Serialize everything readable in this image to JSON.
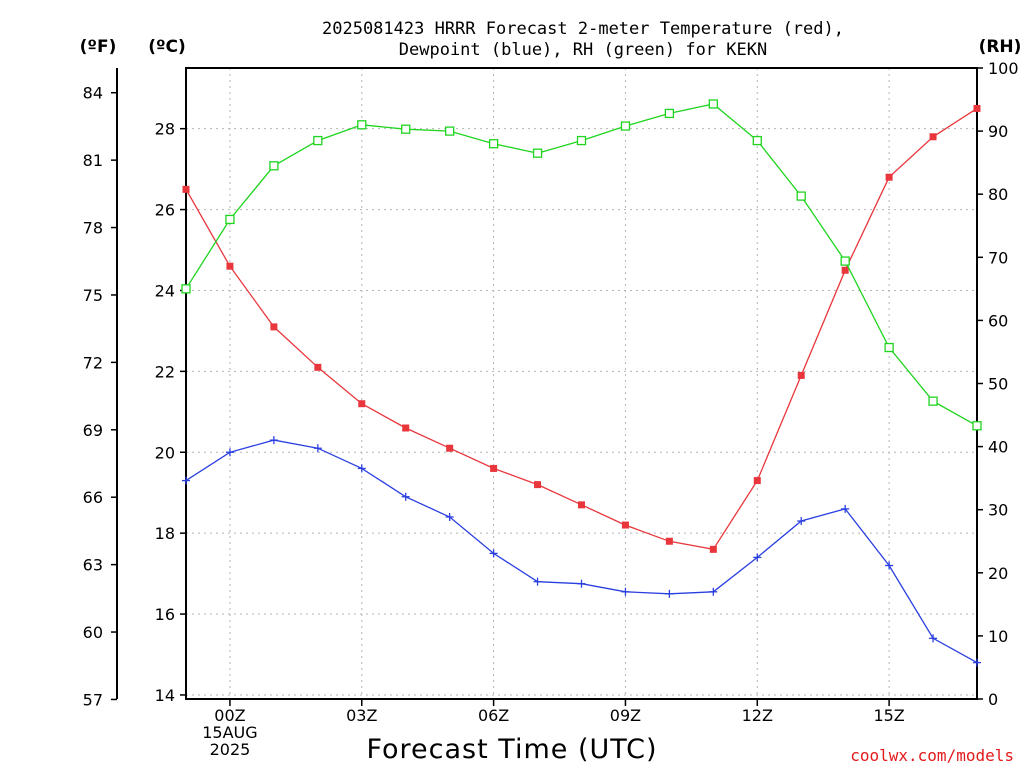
{
  "chart_data": {
    "type": "line",
    "title_line1": "2025081423 HRRR Forecast 2-meter Temperature (red),",
    "title_line2": "Dewpoint (blue), RH (green) for KEKN",
    "xlabel": "Forecast Time (UTC)",
    "credit": "coolwx.com/models",
    "unit_f": "(ºF)",
    "unit_c": "(ºC)",
    "unit_rh": "(RH)",
    "x_ticks": [
      {
        "hour": 0,
        "lines": [
          "00Z",
          "15AUG",
          "2025"
        ]
      },
      {
        "hour": 3,
        "lines": [
          "03Z"
        ]
      },
      {
        "hour": 6,
        "lines": [
          "06Z"
        ]
      },
      {
        "hour": 9,
        "lines": [
          "09Z"
        ]
      },
      {
        "hour": 12,
        "lines": [
          "12Z"
        ]
      },
      {
        "hour": 15,
        "lines": [
          "15Z"
        ]
      }
    ],
    "xlim": [
      -1,
      17
    ],
    "ylim_c": [
      13.9,
      29.5
    ],
    "ylim_rh": [
      0,
      100
    ],
    "c_ticks": [
      14,
      16,
      18,
      20,
      22,
      24,
      26,
      28
    ],
    "f_ticks": [
      57,
      60,
      63,
      66,
      69,
      72,
      75,
      78,
      81,
      84
    ],
    "rh_ticks": [
      0,
      10,
      20,
      30,
      40,
      50,
      60,
      70,
      80,
      90,
      100
    ],
    "series": [
      {
        "name": "Temperature",
        "color": "#e8363c",
        "axis": "c",
        "marker": "filled-square",
        "x": [
          -1,
          0,
          1,
          2,
          3,
          4,
          5,
          6,
          7,
          8,
          9,
          10,
          11,
          12,
          13,
          14,
          15,
          16,
          17
        ],
        "values": [
          26.5,
          24.6,
          23.1,
          22.1,
          21.2,
          20.6,
          20.1,
          19.6,
          19.2,
          18.7,
          18.2,
          17.8,
          17.6,
          19.3,
          21.9,
          24.5,
          26.8,
          27.8,
          28.5
        ]
      },
      {
        "name": "Dewpoint",
        "color": "#2a3fe0",
        "axis": "c",
        "marker": "plus",
        "x": [
          -1,
          0,
          1,
          2,
          3,
          4,
          5,
          6,
          7,
          8,
          9,
          10,
          11,
          12,
          13,
          14,
          15,
          16,
          17
        ],
        "values": [
          19.3,
          20.0,
          20.3,
          20.1,
          19.6,
          18.9,
          18.4,
          17.5,
          16.8,
          16.75,
          16.55,
          16.5,
          16.55,
          17.4,
          18.3,
          18.6,
          17.2,
          15.4,
          14.8
        ]
      },
      {
        "name": "RH",
        "color": "#1fd41f",
        "axis": "rh",
        "marker": "open-square",
        "x": [
          -1,
          0,
          1,
          2,
          3,
          4,
          5,
          6,
          7,
          8,
          9,
          10,
          11,
          12,
          13,
          14,
          15,
          16,
          17
        ],
        "values": [
          65,
          76,
          84.5,
          88.5,
          91,
          90.3,
          90,
          88,
          86.5,
          88.5,
          90.8,
          92.8,
          94.3,
          88.5,
          79.7,
          69.4,
          55.7,
          47.2,
          43.3
        ]
      }
    ]
  }
}
